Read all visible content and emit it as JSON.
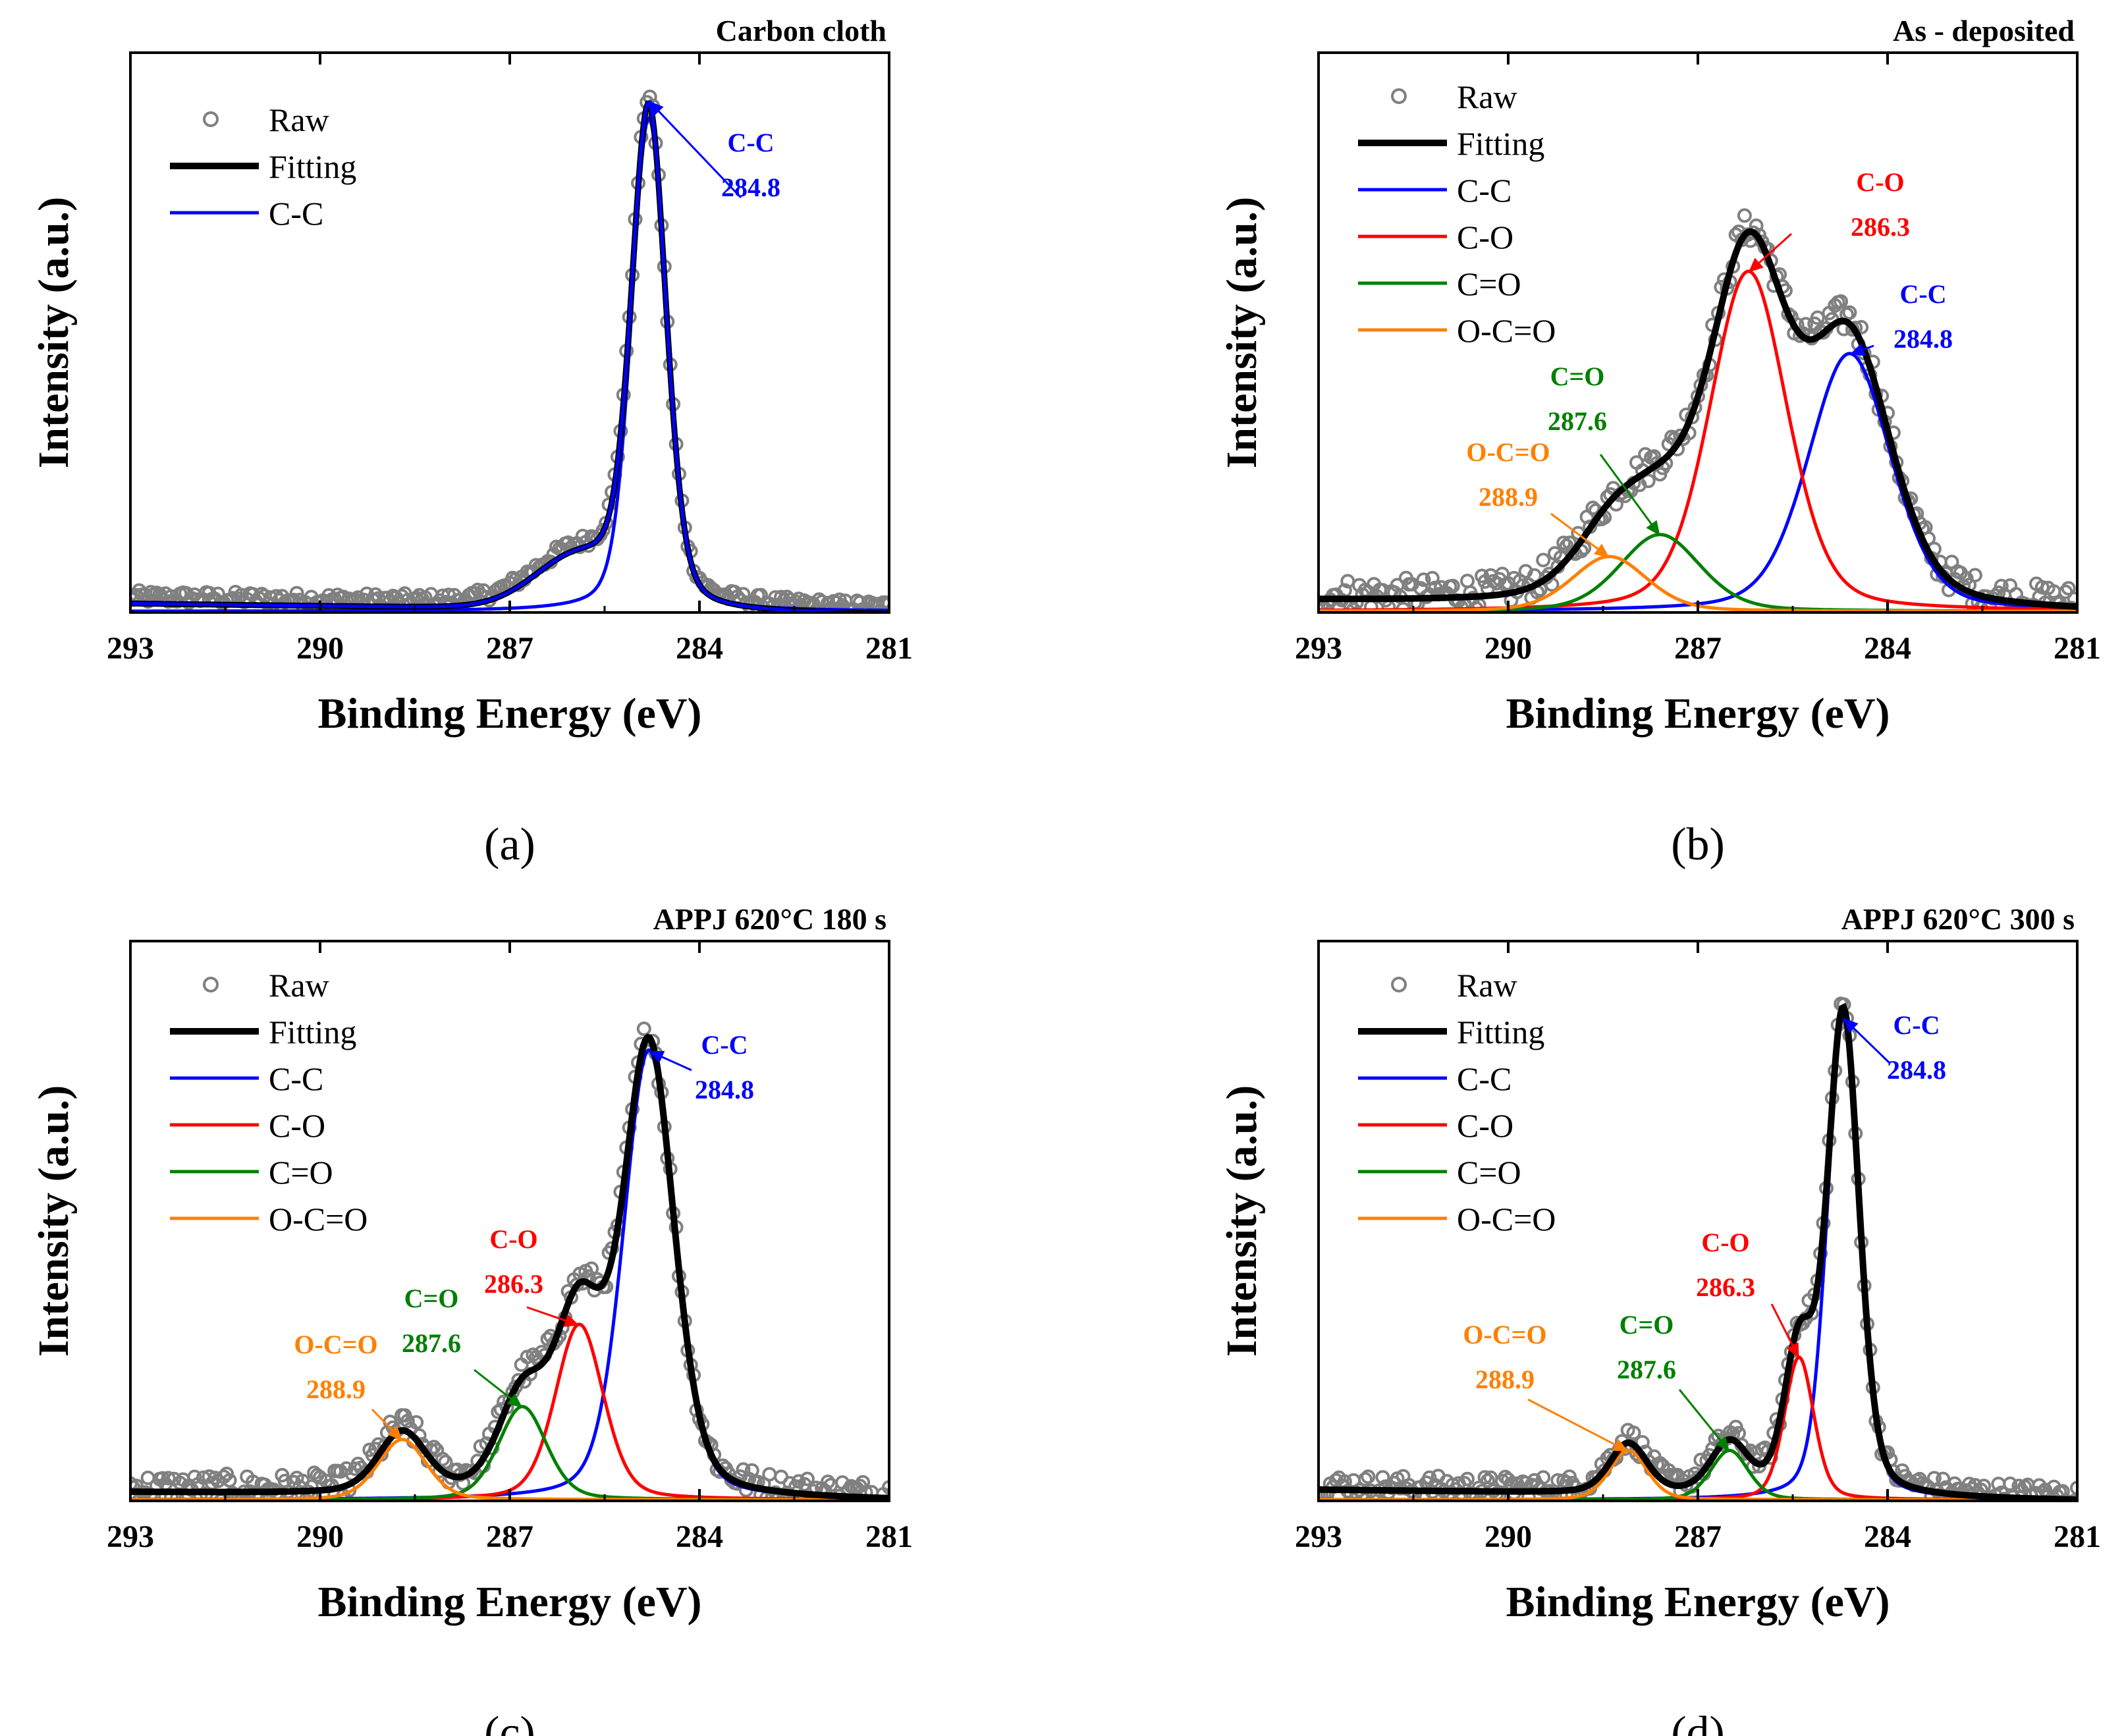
{
  "chart_data": [
    {
      "type": "line",
      "panel": "(a)",
      "title": "Carbon cloth",
      "xlabel": "Binding Energy (eV)",
      "ylabel": "Intensity (a.u.)",
      "xlim": [
        293,
        281
      ],
      "xticks": [
        "293",
        "290",
        "287",
        "284",
        "281"
      ],
      "ylim": [
        0,
        1.0
      ],
      "legend": [
        {
          "label": "Raw",
          "kind": "circle",
          "color": "#808080"
        },
        {
          "label": "Fitting",
          "kind": "line",
          "color": "#000000"
        },
        {
          "label": "C-C",
          "kind": "line",
          "color": "#0000ff"
        }
      ],
      "background": {
        "start": 0.02,
        "end": 0.0,
        "shoulder_amp": 0.09,
        "shoulder_center": 285.9,
        "shoulder_width": 0.7
      },
      "components": [
        {
          "name": "C-C",
          "center": 284.8,
          "amplitude": 0.9,
          "fwhm": 0.65,
          "color": "#0000ff"
        }
      ],
      "raw_jitter": 0.012,
      "annotations": [
        {
          "label": "C-C",
          "value": "284.8",
          "color": "#0000ff",
          "peak": 284.8
        }
      ]
    },
    {
      "type": "line",
      "panel": "(b)",
      "title": "As - deposited",
      "xlabel": "Binding Energy (eV)",
      "ylabel": "Intensity (a.u.)",
      "xlim": [
        293,
        281
      ],
      "xticks": [
        "293",
        "290",
        "287",
        "284",
        "281"
      ],
      "ylim": [
        0,
        1.0
      ],
      "legend": [
        {
          "label": "Raw",
          "kind": "circle",
          "color": "#808080"
        },
        {
          "label": "Fitting",
          "kind": "line",
          "color": "#000000"
        },
        {
          "label": "C-C",
          "kind": "line",
          "color": "#0000ff"
        },
        {
          "label": "C-O",
          "kind": "line",
          "color": "#ff0000"
        },
        {
          "label": "C=O",
          "kind": "line",
          "color": "#008000"
        },
        {
          "label": "O-C=O",
          "kind": "line",
          "color": "#ff8000"
        }
      ],
      "background": {
        "start": 0.04,
        "end": 0.0,
        "shoulder_amp": 0.0,
        "shoulder_center": 286,
        "shoulder_width": 1
      },
      "components": [
        {
          "name": "C-C",
          "center": 284.6,
          "amplitude": 0.47,
          "fwhm": 1.55,
          "color": "#0000ff"
        },
        {
          "name": "C-O",
          "center": 286.2,
          "amplitude": 0.62,
          "fwhm": 1.45,
          "color": "#ff0000"
        },
        {
          "name": "C=O",
          "center": 287.6,
          "amplitude": 0.14,
          "fwhm": 1.5,
          "color": "#008000"
        },
        {
          "name": "O-C=O",
          "center": 288.4,
          "amplitude": 0.1,
          "fwhm": 1.4,
          "color": "#ff8000"
        }
      ],
      "raw_jitter": 0.03,
      "annotations": [
        {
          "label": "C-O",
          "value": "286.3",
          "color": "#ff0000",
          "peak": 286.2
        },
        {
          "label": "C-C",
          "value": "284.8",
          "color": "#0000ff",
          "peak": 284.6
        },
        {
          "label": "C=O",
          "value": "287.6",
          "color": "#008000",
          "peak": 287.6
        },
        {
          "label": "O-C=O",
          "value": "288.9",
          "color": "#ff8000",
          "peak": 288.4
        }
      ]
    },
    {
      "type": "line",
      "panel": "(c)",
      "title": "APPJ 620°C 180 s",
      "xlabel": "Binding Energy (eV)",
      "ylabel": "Intensity (a.u.)",
      "xlim": [
        293,
        281
      ],
      "xticks": [
        "293",
        "290",
        "287",
        "284",
        "281"
      ],
      "ylim": [
        0,
        1.0
      ],
      "legend": [
        {
          "label": "Raw",
          "kind": "circle",
          "color": "#808080"
        },
        {
          "label": "Fitting",
          "kind": "line",
          "color": "#000000"
        },
        {
          "label": "C-C",
          "kind": "line",
          "color": "#0000ff"
        },
        {
          "label": "C-O",
          "kind": "line",
          "color": "#ff0000"
        },
        {
          "label": "C=O",
          "kind": "line",
          "color": "#008000"
        },
        {
          "label": "O-C=O",
          "kind": "line",
          "color": "#ff8000"
        }
      ],
      "background": {
        "start": 0.03,
        "end": 0.0,
        "shoulder_amp": 0.0,
        "shoulder_center": 286,
        "shoulder_width": 1
      },
      "components": [
        {
          "name": "C-C",
          "center": 284.8,
          "amplitude": 0.82,
          "fwhm": 0.95,
          "color": "#0000ff"
        },
        {
          "name": "C-O",
          "center": 285.9,
          "amplitude": 0.32,
          "fwhm": 0.9,
          "color": "#ff0000"
        },
        {
          "name": "C=O",
          "center": 286.8,
          "amplitude": 0.17,
          "fwhm": 0.9,
          "color": "#008000"
        },
        {
          "name": "O-C=O",
          "center": 288.7,
          "amplitude": 0.11,
          "fwhm": 0.9,
          "color": "#ff8000"
        }
      ],
      "raw_jitter": 0.025,
      "annotations": [
        {
          "label": "C-C",
          "value": "284.8",
          "color": "#0000ff",
          "peak": 284.8
        },
        {
          "label": "C-O",
          "value": "286.3",
          "color": "#ff0000",
          "peak": 285.9
        },
        {
          "label": "C=O",
          "value": "287.6",
          "color": "#008000",
          "peak": 286.8
        },
        {
          "label": "O-C=O",
          "value": "288.9",
          "color": "#ff8000",
          "peak": 288.7
        }
      ]
    },
    {
      "type": "line",
      "panel": "(d)",
      "title": "APPJ 620°C 300 s",
      "xlabel": "Binding Energy (eV)",
      "ylabel": "Intensity (a.u.)",
      "xlim": [
        293,
        281
      ],
      "xticks": [
        "293",
        "290",
        "287",
        "284",
        "281"
      ],
      "ylim": [
        0,
        1.0
      ],
      "legend": [
        {
          "label": "Raw",
          "kind": "circle",
          "color": "#808080"
        },
        {
          "label": "Fitting",
          "kind": "line",
          "color": "#000000"
        },
        {
          "label": "C-C",
          "kind": "line",
          "color": "#0000ff"
        },
        {
          "label": "C-O",
          "kind": "line",
          "color": "#ff0000"
        },
        {
          "label": "C=O",
          "kind": "line",
          "color": "#008000"
        },
        {
          "label": "O-C=O",
          "kind": "line",
          "color": "#ff8000"
        }
      ],
      "background": {
        "start": 0.04,
        "end": 0.0,
        "shoulder_amp": 0.0,
        "shoulder_center": 286,
        "shoulder_width": 1
      },
      "components": [
        {
          "name": "C-C",
          "center": 284.7,
          "amplitude": 0.88,
          "fwhm": 0.6,
          "color": "#0000ff"
        },
        {
          "name": "C-O",
          "center": 285.4,
          "amplitude": 0.26,
          "fwhm": 0.55,
          "color": "#ff0000"
        },
        {
          "name": "C=O",
          "center": 286.5,
          "amplitude": 0.09,
          "fwhm": 0.7,
          "color": "#008000"
        },
        {
          "name": "O-C=O",
          "center": 288.1,
          "amplitude": 0.09,
          "fwhm": 0.7,
          "color": "#ff8000"
        }
      ],
      "raw_jitter": 0.02,
      "annotations": [
        {
          "label": "C-C",
          "value": "284.8",
          "color": "#0000ff",
          "peak": 284.7
        },
        {
          "label": "C-O",
          "value": "286.3",
          "color": "#ff0000",
          "peak": 285.4
        },
        {
          "label": "C=O",
          "value": "287.6",
          "color": "#008000",
          "peak": 286.5
        },
        {
          "label": "O-C=O",
          "value": "288.9",
          "color": "#ff8000",
          "peak": 288.1
        }
      ]
    }
  ]
}
